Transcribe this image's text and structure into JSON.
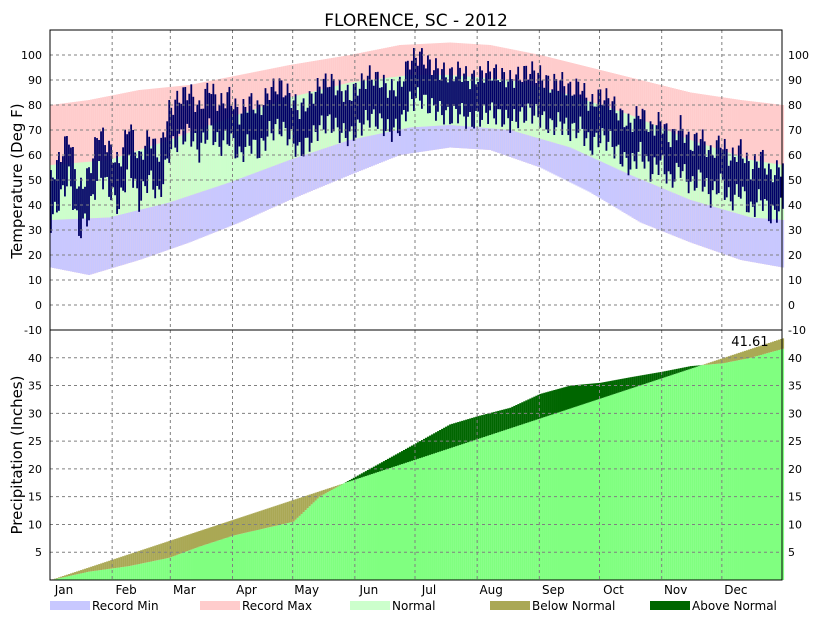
{
  "chart_data": {
    "type": "area",
    "title": "FLORENCE, SC - 2012",
    "months": [
      "Jan",
      "Feb",
      "Mar",
      "Apr",
      "May",
      "Jun",
      "Jul",
      "Aug",
      "Sep",
      "Oct",
      "Nov",
      "Dec"
    ],
    "temperature_panel": {
      "ylabel": "Temperature (Deg F)",
      "ylim": [
        -10,
        110
      ],
      "yticks": [
        -10,
        0,
        10,
        20,
        30,
        40,
        50,
        60,
        70,
        80,
        90,
        100
      ],
      "grid": true,
      "month_days": [
        1,
        32,
        61,
        92,
        122,
        153,
        183,
        214,
        245,
        275,
        306,
        336
      ],
      "series": [
        {
          "name": "Record Max",
          "color": "#ffcccc",
          "points": [
            [
              1,
              80
            ],
            [
              20,
              82
            ],
            [
              45,
              86
            ],
            [
              70,
              88
            ],
            [
              95,
              92
            ],
            [
              120,
              96
            ],
            [
              150,
              100
            ],
            [
              175,
              104
            ],
            [
              200,
              105
            ],
            [
              220,
              104
            ],
            [
              245,
              100
            ],
            [
              270,
              95
            ],
            [
              295,
              90
            ],
            [
              320,
              85
            ],
            [
              345,
              82
            ],
            [
              366,
              80
            ]
          ]
        },
        {
          "name": "Record Min",
          "color": "#c8c8ff",
          "points": [
            [
              1,
              15
            ],
            [
              20,
              12
            ],
            [
              45,
              18
            ],
            [
              70,
              25
            ],
            [
              95,
              33
            ],
            [
              120,
              42
            ],
            [
              150,
              52
            ],
            [
              175,
              60
            ],
            [
              200,
              63
            ],
            [
              220,
              62
            ],
            [
              245,
              55
            ],
            [
              270,
              45
            ],
            [
              295,
              33
            ],
            [
              320,
              25
            ],
            [
              345,
              18
            ],
            [
              366,
              15
            ]
          ]
        },
        {
          "name": "Normal",
          "color": "#ccffcc",
          "high": [
            [
              1,
              56
            ],
            [
              30,
              58
            ],
            [
              60,
              66
            ],
            [
              90,
              75
            ],
            [
              120,
              83
            ],
            [
              150,
              89
            ],
            [
              180,
              92
            ],
            [
              200,
              92
            ],
            [
              230,
              90
            ],
            [
              260,
              84
            ],
            [
              290,
              76
            ],
            [
              320,
              66
            ],
            [
              350,
              58
            ],
            [
              366,
              56
            ]
          ],
          "low": [
            [
              1,
              34
            ],
            [
              30,
              35
            ],
            [
              60,
              41
            ],
            [
              90,
              49
            ],
            [
              120,
              58
            ],
            [
              150,
              66
            ],
            [
              180,
              71
            ],
            [
              200,
              72
            ],
            [
              230,
              70
            ],
            [
              260,
              63
            ],
            [
              290,
              52
            ],
            [
              320,
              42
            ],
            [
              350,
              35
            ],
            [
              366,
              34
            ]
          ]
        },
        {
          "name": "Observed",
          "color": "#000066",
          "points": [
            [
              1,
              42
            ],
            [
              5,
              50
            ],
            [
              10,
              60
            ],
            [
              15,
              38
            ],
            [
              20,
              45
            ],
            [
              25,
              62
            ],
            [
              30,
              55
            ],
            [
              35,
              48
            ],
            [
              40,
              65
            ],
            [
              45,
              50
            ],
            [
              50,
              60
            ],
            [
              55,
              52
            ],
            [
              60,
              70
            ],
            [
              65,
              75
            ],
            [
              70,
              78
            ],
            [
              75,
              70
            ],
            [
              80,
              80
            ],
            [
              85,
              72
            ],
            [
              90,
              76
            ],
            [
              95,
              68
            ],
            [
              100,
              74
            ],
            [
              105,
              70
            ],
            [
              110,
              78
            ],
            [
              115,
              80
            ],
            [
              120,
              76
            ],
            [
              125,
              70
            ],
            [
              130,
              74
            ],
            [
              135,
              80
            ],
            [
              140,
              82
            ],
            [
              145,
              78
            ],
            [
              150,
              76
            ],
            [
              155,
              80
            ],
            [
              160,
              84
            ],
            [
              165,
              82
            ],
            [
              170,
              78
            ],
            [
              175,
              80
            ],
            [
              180,
              90
            ],
            [
              185,
              92
            ],
            [
              190,
              88
            ],
            [
              195,
              86
            ],
            [
              200,
              84
            ],
            [
              205,
              86
            ],
            [
              210,
              82
            ],
            [
              215,
              84
            ],
            [
              220,
              86
            ],
            [
              225,
              84
            ],
            [
              230,
              82
            ],
            [
              235,
              84
            ],
            [
              240,
              86
            ],
            [
              245,
              84
            ],
            [
              250,
              80
            ],
            [
              255,
              82
            ],
            [
              260,
              78
            ],
            [
              265,
              80
            ],
            [
              270,
              72
            ],
            [
              275,
              76
            ],
            [
              280,
              74
            ],
            [
              285,
              68
            ],
            [
              290,
              64
            ],
            [
              295,
              70
            ],
            [
              300,
              62
            ],
            [
              305,
              66
            ],
            [
              310,
              58
            ],
            [
              315,
              64
            ],
            [
              320,
              56
            ],
            [
              325,
              60
            ],
            [
              330,
              52
            ],
            [
              335,
              58
            ],
            [
              340,
              50
            ],
            [
              345,
              55
            ],
            [
              350,
              46
            ],
            [
              355,
              52
            ],
            [
              360,
              44
            ],
            [
              366,
              48
            ]
          ]
        }
      ]
    },
    "precip_panel": {
      "ylabel": "Precipitation (Inches)",
      "ylim": [
        0,
        45
      ],
      "yticks": [
        5,
        10,
        15,
        20,
        25,
        30,
        35,
        40
      ],
      "grid": true,
      "annotation": "41.61",
      "normal_cumulative": [
        [
          1,
          0
        ],
        [
          366,
          43.5
        ]
      ],
      "observed_cumulative": [
        [
          1,
          0
        ],
        [
          20,
          1.5
        ],
        [
          40,
          2.5
        ],
        [
          60,
          4
        ],
        [
          75,
          6
        ],
        [
          92,
          8
        ],
        [
          110,
          9.5
        ],
        [
          122,
          10.5
        ],
        [
          135,
          15
        ],
        [
          150,
          18
        ],
        [
          165,
          21
        ],
        [
          180,
          24
        ],
        [
          200,
          28
        ],
        [
          214,
          29.5
        ],
        [
          230,
          31
        ],
        [
          245,
          33.5
        ],
        [
          260,
          35
        ],
        [
          275,
          35.5
        ],
        [
          290,
          36.5
        ],
        [
          306,
          37.5
        ],
        [
          320,
          38.5
        ],
        [
          336,
          39
        ],
        [
          350,
          40
        ],
        [
          366,
          41.61
        ]
      ]
    },
    "legend": [
      {
        "label": "Record Min",
        "color": "#c8c8ff"
      },
      {
        "label": "Record Max",
        "color": "#ffcccc"
      },
      {
        "label": "Normal",
        "color": "#ccffcc"
      },
      {
        "label": "Below Normal",
        "color": "#aaa855"
      },
      {
        "label": "Above Normal",
        "color": "#006600"
      }
    ]
  }
}
